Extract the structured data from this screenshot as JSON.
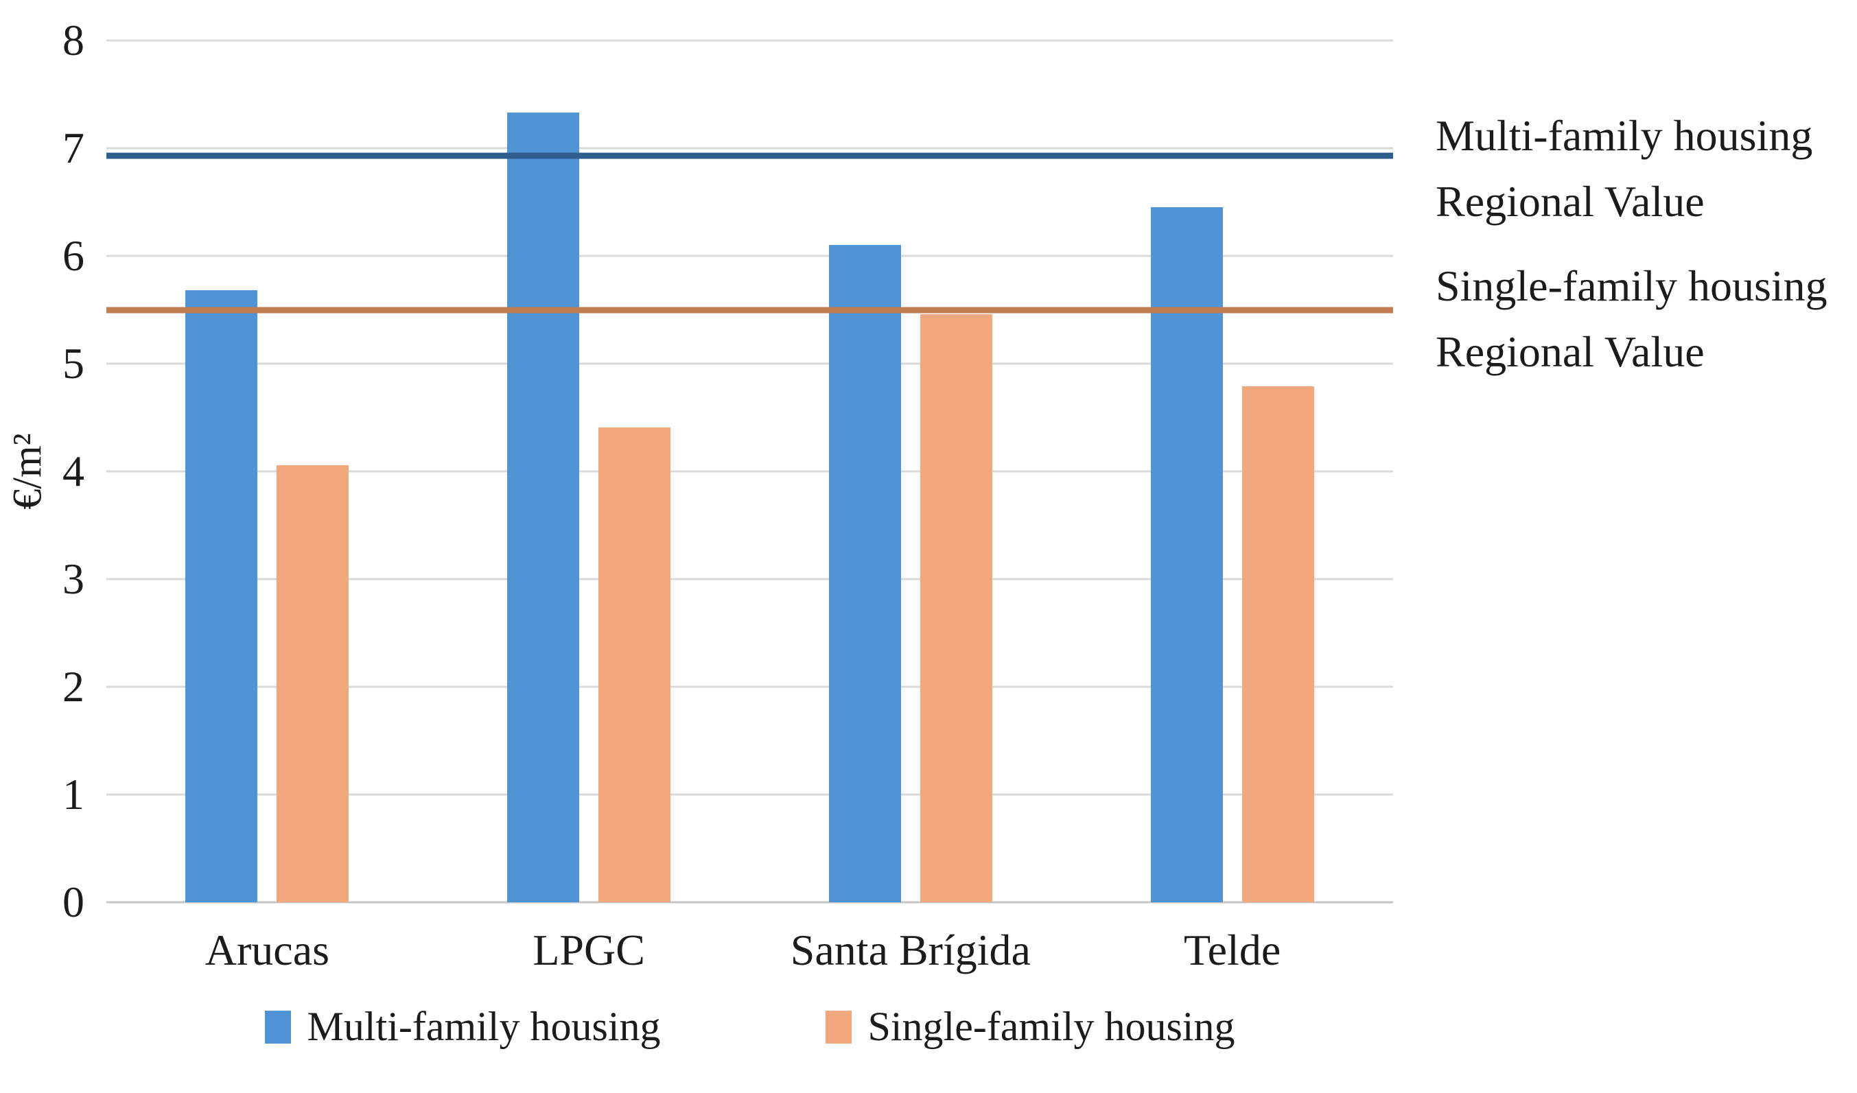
{
  "chart_data": {
    "type": "bar",
    "title": "",
    "categories": [
      "Arucas",
      "LPGC",
      "Santa Brígida",
      "Telde"
    ],
    "series": [
      {
        "name": "Multi-family housing",
        "color": "#5094d6",
        "values": [
          5.68,
          7.33,
          6.1,
          6.45
        ]
      },
      {
        "name": "Single-family housing",
        "color": "#f1a87c",
        "values": [
          4.06,
          4.41,
          5.46,
          4.79
        ]
      }
    ],
    "reference_lines": [
      {
        "name": "Multi-family housing Regional Value",
        "value": 6.93,
        "color": "#2e5d8e"
      },
      {
        "name": "Single-family housing Regional Value",
        "value": 5.5,
        "color": "#c27c52"
      }
    ],
    "ylabel": "€/m²",
    "xlabel": "",
    "ylim": [
      0,
      8
    ],
    "yticks": [
      0,
      1,
      2,
      3,
      4,
      5,
      6,
      7,
      8
    ],
    "grid": true,
    "legend_position": "bottom"
  },
  "annotations": {
    "multi": {
      "line1": "Multi-family housing",
      "line2": "Regional Value"
    },
    "single": {
      "line1": "Single-family housing",
      "line2": "Regional Value"
    }
  },
  "legend": {
    "items": [
      {
        "label": "Multi-family housing",
        "color": "#5094d6"
      },
      {
        "label": "Single-family housing",
        "color": "#f1a87c"
      }
    ]
  },
  "colors": {
    "gridline": "#d9d9d9",
    "axis_line": "#c6c6c6",
    "text": "#1b1b1b",
    "background": "#ffffff"
  }
}
